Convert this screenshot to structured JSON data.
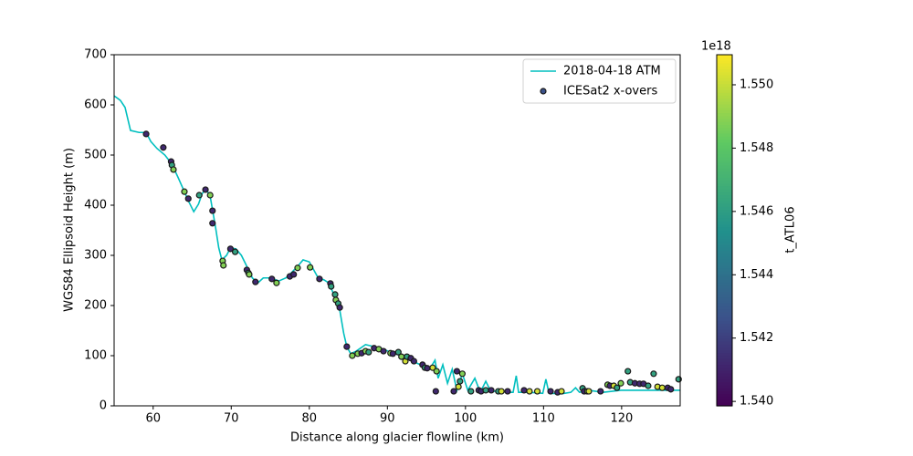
{
  "chart_data": {
    "type": "line",
    "xlabel": "Distance along glacier flowline (km)",
    "ylabel": "WGS84 Ellipsoid Height (m)",
    "xlim": [
      55,
      127.5
    ],
    "ylim": [
      0,
      700
    ],
    "xticks": [
      60,
      70,
      80,
      90,
      100,
      110,
      120
    ],
    "yticks": [
      0,
      100,
      200,
      300,
      400,
      500,
      600,
      700
    ],
    "legend": "upper right",
    "series": [
      {
        "name": "2018-04-18 ATM",
        "type": "line",
        "color": "#00bfbf",
        "x": [
          55,
          55.8,
          56.4,
          57.1,
          58.2,
          59.1,
          59.7,
          60.5,
          61.5,
          62.4,
          63.2,
          64,
          64.5,
          65.2,
          65.8,
          66.3,
          66.8,
          67.3,
          67.6,
          68,
          68.4,
          68.8,
          69.4,
          69.9,
          70.6,
          71.3,
          72,
          72.7,
          73.4,
          74.1,
          75,
          76.1,
          77,
          77.8,
          78.5,
          79.2,
          80,
          80.5,
          81.1,
          81.9,
          82.5,
          83,
          83.4,
          83.9,
          84.4,
          84.8,
          85.3,
          86,
          87.2,
          88.3,
          89.5,
          90.7,
          91.8,
          93,
          94.2,
          95.4,
          96.1,
          96.5,
          97.1,
          97.7,
          98.3,
          98.9,
          99.6,
          100.3,
          101.2,
          101.9,
          102.6,
          103.3,
          104.1,
          105.3,
          106.1,
          106.5,
          106.8,
          108.2,
          109.9,
          110.3,
          110.7,
          112.3,
          113.5,
          114.1,
          114.6,
          115.8,
          117.6,
          119.9,
          122.3,
          124.6,
          126.3,
          127.5
        ],
        "values": [
          618,
          609,
          595,
          549,
          545,
          545,
          527,
          513,
          500,
          482,
          455,
          427,
          409,
          387,
          402,
          424,
          431,
          418,
          391,
          355,
          315,
          291,
          300,
          315,
          313,
          300,
          278,
          255,
          245,
          255,
          255,
          249,
          255,
          267,
          278,
          291,
          287,
          273,
          256,
          251,
          245,
          227,
          209,
          191,
          145,
          118,
          104,
          109,
          122,
          118,
          113,
          105,
          100,
          91,
          82,
          73,
          91,
          55,
          82,
          45,
          73,
          31,
          64,
          31,
          55,
          27,
          49,
          27,
          31,
          27,
          27,
          60,
          27,
          27,
          25,
          53,
          25,
          24,
          27,
          36,
          27,
          31,
          27,
          31,
          31,
          31,
          31,
          31
        ]
      },
      {
        "name": "ICESat2 x-overs",
        "type": "scatter",
        "edgecolor": "#1a1a1a",
        "x": [
          59.1,
          61.3,
          62.3,
          62.4,
          62.6,
          64,
          64.5,
          65.9,
          66.7,
          67.3,
          67.6,
          67.6,
          68.9,
          69,
          69.9,
          70.5,
          72,
          72.2,
          72.3,
          73.1,
          75.2,
          75.8,
          77.5,
          78,
          78.5,
          80.1,
          81.3,
          82.7,
          82.8,
          83.3,
          83.4,
          83.7,
          83.9,
          84.8,
          85.5,
          86.2,
          86.7,
          87.2,
          87.6,
          88.3,
          88.9,
          89.5,
          90.4,
          90.7,
          91.4,
          91.8,
          92.3,
          92.5,
          93,
          93.4,
          94.5,
          94.8,
          95.1,
          95.8,
          96.3,
          96.2,
          98.5,
          98.9,
          99.1,
          99.6,
          99.3,
          100.7,
          101.7,
          102,
          102.6,
          103.3,
          104.2,
          104.6,
          105.4,
          107.5,
          108.2,
          109.2,
          110.9,
          111.8,
          112.3,
          115,
          115.2,
          115.6,
          115.8,
          117.3,
          118.2,
          118.5,
          119,
          119.4,
          119.9,
          120.8,
          121.1,
          121.7,
          122.3,
          122.8,
          123.4,
          124.1,
          124.6,
          125.2,
          125.9,
          126.3,
          127.3
        ],
        "values": [
          542,
          515,
          487,
          480,
          471,
          427,
          413,
          420,
          431,
          420,
          389,
          364,
          289,
          280,
          313,
          307,
          271,
          265,
          262,
          247,
          253,
          245,
          258,
          262,
          275,
          276,
          253,
          244,
          238,
          222,
          211,
          204,
          196,
          118,
          100,
          104,
          105,
          109,
          107,
          115,
          113,
          109,
          105,
          104,
          107,
          98,
          89,
          98,
          95,
          89,
          82,
          76,
          75,
          76,
          69,
          29,
          29,
          69,
          38,
          64,
          49,
          29,
          31,
          29,
          31,
          31,
          29,
          29,
          29,
          31,
          29,
          29,
          29,
          27,
          29,
          35,
          29,
          29,
          29,
          29,
          42,
          40,
          40,
          36,
          45,
          69,
          47,
          45,
          44,
          44,
          40,
          64,
          38,
          36,
          36,
          33,
          53
        ],
        "c": [
          1.5412,
          1.5412,
          1.5412,
          1.5462,
          1.5488,
          1.5488,
          1.5412,
          1.5462,
          1.5412,
          1.5488,
          1.5412,
          1.5412,
          1.5488,
          1.5488,
          1.5412,
          1.5462,
          1.5412,
          1.5462,
          1.5488,
          1.5412,
          1.5412,
          1.5488,
          1.5412,
          1.5412,
          1.5488,
          1.5488,
          1.5412,
          1.5412,
          1.5462,
          1.5462,
          1.5488,
          1.5462,
          1.5412,
          1.5412,
          1.5488,
          1.5488,
          1.5412,
          1.5488,
          1.5462,
          1.5412,
          1.5488,
          1.5412,
          1.5488,
          1.5412,
          1.5462,
          1.5488,
          1.5502,
          1.5462,
          1.5412,
          1.5412,
          1.5412,
          1.5462,
          1.5412,
          1.5502,
          1.5488,
          1.5412,
          1.5412,
          1.5412,
          1.5502,
          1.5488,
          1.5462,
          1.5462,
          1.5412,
          1.5412,
          1.5462,
          1.5412,
          1.5462,
          1.5502,
          1.5412,
          1.5412,
          1.5502,
          1.5502,
          1.5412,
          1.5412,
          1.5502,
          1.5462,
          1.5412,
          1.5488,
          1.5502,
          1.5412,
          1.5488,
          1.5412,
          1.5502,
          1.5462,
          1.5488,
          1.5462,
          1.5462,
          1.5412,
          1.5412,
          1.5412,
          1.5462,
          1.5462,
          1.5502,
          1.5502,
          1.5412,
          1.5412,
          1.5462
        ]
      }
    ],
    "colorbar": {
      "label": "t_ATL06",
      "offset_text": "1e18",
      "colormap": "viridis",
      "clim": [
        1.53986,
        1.55095
      ],
      "ticks": [
        {
          "value": 1.54,
          "label": "1.540"
        },
        {
          "value": 1.542,
          "label": "1.542"
        },
        {
          "value": 1.544,
          "label": "1.544"
        },
        {
          "value": 1.546,
          "label": "1.546"
        },
        {
          "value": 1.548,
          "label": "1.548"
        },
        {
          "value": 1.55,
          "label": "1.550"
        }
      ]
    }
  }
}
